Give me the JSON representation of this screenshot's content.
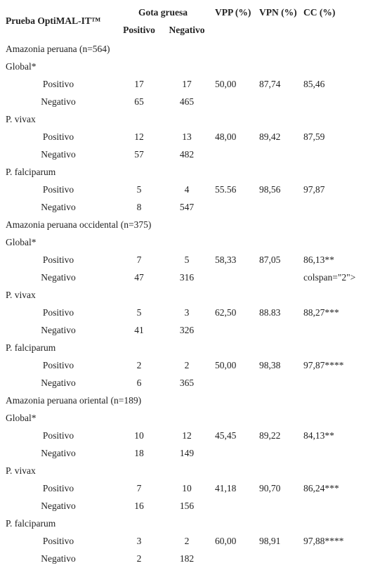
{
  "header": {
    "test": "Prueba OptiMAL-IT™",
    "gold": "Gota gruesa",
    "gold_pos": "Positivo",
    "gold_neg": "Negativo",
    "vpp": "VPP (%)",
    "vpn": "VPN (%)",
    "cc": "CC (%)"
  },
  "sections": [
    {
      "title": "Amazonia peruana (n=564)",
      "groups": [
        {
          "title": "Global*",
          "rows": [
            {
              "label": "Positivo",
              "pos": 17,
              "neg": 17,
              "vpp": "50,00",
              "vpn": "87,74",
              "cc": "85,46"
            },
            {
              "label": "Negativo",
              "pos": 65,
              "neg": 465
            }
          ]
        },
        {
          "title": "P. vivax",
          "rows": [
            {
              "label": "Positivo",
              "pos": 12,
              "neg": 13,
              "vpp": "48,00",
              "vpn": "89,42",
              "cc": "87,59"
            },
            {
              "label": "Negativo",
              "pos": 57,
              "neg": 482
            }
          ]
        },
        {
          "title": "P. falciparum",
          "rows": [
            {
              "label": "Positivo",
              "pos": 5,
              "neg": 4,
              "vpp": "55.56",
              "vpn": "98,56",
              "cc": "97,87"
            },
            {
              "label": "Negativo",
              "pos": 8,
              "neg": 547
            }
          ]
        }
      ]
    },
    {
      "title": "Amazonia peruana occidental (n=375)",
      "groups": [
        {
          "title": "Global*",
          "rows": [
            {
              "label": "Positivo",
              "pos": 7,
              "neg": 5,
              "vpp": "58,33",
              "vpn": "87,05",
              "cc": "86,13**"
            },
            {
              "label": "Negativo",
              "pos": 47,
              "neg": 316,
              "cc": "colspan=\"2\">"
            }
          ]
        },
        {
          "title": "P. vivax",
          "rows": [
            {
              "label": "Positivo",
              "pos": 5,
              "neg": 3,
              "vpp": "62,50",
              "vpn": "88.83",
              "cc": "88,27***"
            },
            {
              "label": "Negativo",
              "pos": 41,
              "neg": 326
            }
          ]
        },
        {
          "title": "P. falciparum",
          "rows": [
            {
              "label": "Positivo",
              "pos": 2,
              "neg": 2,
              "vpp": "50,00",
              "vpn": "98,38",
              "cc": "97,87****"
            },
            {
              "label": "Negativo",
              "pos": 6,
              "neg": 365
            }
          ]
        }
      ]
    },
    {
      "title": "Amazonia peruana oriental (n=189)",
      "groups": [
        {
          "title": "Global*",
          "rows": [
            {
              "label": "Positivo",
              "pos": 10,
              "neg": 12,
              "vpp": "45,45",
              "vpn": "89,22",
              "cc": "84,13**"
            },
            {
              "label": "Negativo",
              "pos": 18,
              "neg": 149
            }
          ]
        },
        {
          "title": "P. vivax",
          "rows": [
            {
              "label": "Positivo",
              "pos": 7,
              "neg": 10,
              "vpp": "41,18",
              "vpn": "90,70",
              "cc": "86,24***"
            },
            {
              "label": "Negativo",
              "pos": 16,
              "neg": 156
            }
          ]
        },
        {
          "title": "P. falciparum",
          "rows": [
            {
              "label": "Positivo",
              "pos": 3,
              "neg": 2,
              "vpp": "60,00",
              "vpn": "98,91",
              "cc": "97,88****"
            },
            {
              "label": "Negativo",
              "pos": 2,
              "neg": 182
            }
          ]
        }
      ]
    }
  ]
}
